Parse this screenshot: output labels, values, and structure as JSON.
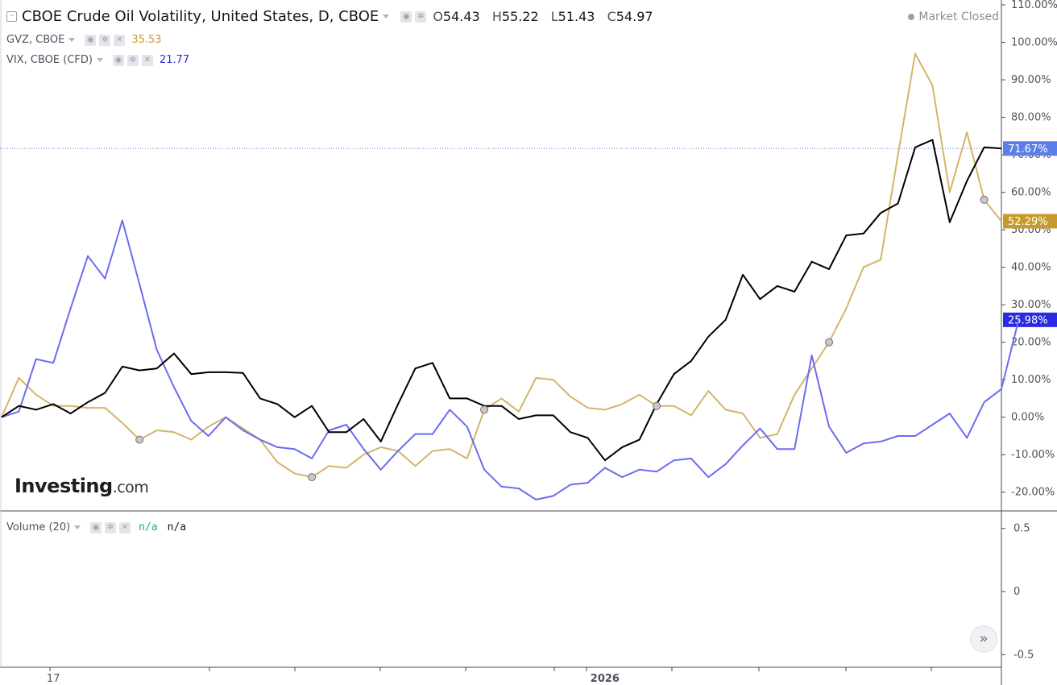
{
  "header": {
    "title": "CBOE Crude Oil Volatility, United States, D, CBOE",
    "open_label": "O",
    "open": "54.43",
    "high_label": "H",
    "high": "55.22",
    "low_label": "L",
    "low": "51.43",
    "close_label": "C",
    "close": "54.97",
    "market_status": "Market Closed"
  },
  "legend": {
    "gvz_name": "GVZ, CBOE",
    "gvz_value": "35.53",
    "vix_name": "VIX, CBOE (CFD)",
    "vix_value": "21.77",
    "volume_name": "Volume (20)",
    "volume_value_1": "n/a",
    "volume_value_2": "n/a"
  },
  "branding": {
    "logo_main": "Investing",
    "logo_suffix": ".com"
  },
  "scroll_button_glyph": "»",
  "colors": {
    "ovx": "#000000",
    "gvz": "#d4b46a",
    "vix": "#6b6cf2",
    "gvz_label": "#c79a2c",
    "vix_label": "#2a2ae0",
    "ovx_label": "#5b7fe6",
    "volume_value": "#26a69a"
  },
  "chart_data": [
    {
      "type": "line",
      "title": "CBOE Crude Oil Volatility, United States, D, CBOE",
      "y_unit": "%",
      "ylim": [
        -25,
        110
      ],
      "yticks": [
        "110.00%",
        "100.00%",
        "90.00%",
        "80.00%",
        "70.00%",
        "60.00%",
        "50.00%",
        "40.00%",
        "30.00%",
        "20.00%",
        "10.00%",
        "0.00%",
        "-10.00%",
        "-20.00%"
      ],
      "x_tick_labels": [
        "17",
        "2026"
      ],
      "x_tick_label_index": [
        3,
        35
      ],
      "grid": false,
      "series": [
        {
          "name": "CBOE Crude Oil Volatility",
          "color": "#000000",
          "last_value_label": "71.67%",
          "values": [
            0.0,
            3.0,
            2.0,
            3.5,
            1.0,
            4.0,
            6.5,
            13.5,
            12.5,
            13.0,
            17.0,
            11.5,
            12.0,
            12.0,
            11.8,
            5.0,
            3.5,
            0.0,
            3.0,
            -4.0,
            -4.0,
            -0.5,
            -6.5,
            3.5,
            13.0,
            14.5,
            5.0,
            5.0,
            3.0,
            3.0,
            -0.5,
            0.5,
            0.5,
            -4.0,
            -5.5,
            -11.5,
            -8.0,
            -6.0,
            3.5,
            11.5,
            15.0,
            21.5,
            26.0,
            38.0,
            31.5,
            35.0,
            33.5,
            41.5,
            39.5,
            48.5,
            49.0,
            54.5,
            57.0,
            72.0,
            74.0,
            52.0,
            63.0,
            72.0,
            71.67
          ]
        },
        {
          "name": "GVZ, CBOE",
          "color": "#d4b46a",
          "last_value_label": "52.29%",
          "values": [
            0.0,
            10.5,
            6.0,
            3.0,
            3.0,
            2.5,
            2.5,
            -1.5,
            -6.0,
            -3.5,
            -4.0,
            -6.0,
            -2.5,
            0.0,
            -3.0,
            -6.0,
            -12.0,
            -15.0,
            -16.0,
            -13.0,
            -13.5,
            -10.0,
            -8.0,
            -9.0,
            -13.0,
            -9.0,
            -8.5,
            -11.0,
            2.0,
            5.0,
            1.5,
            10.5,
            10.0,
            5.5,
            2.5,
            2.0,
            3.5,
            6.0,
            3.0,
            3.0,
            0.5,
            7.0,
            2.0,
            1.0,
            -5.5,
            -4.5,
            6.0,
            13.0,
            20.0,
            29.0,
            40.0,
            42.0,
            70.0,
            97.0,
            88.5,
            60.0,
            76.0,
            58.0,
            52.29
          ]
        },
        {
          "name": "VIX, CBOE (CFD)",
          "color": "#6b6cf2",
          "last_value_label": "25.98%",
          "values": [
            0.0,
            1.5,
            15.5,
            14.5,
            29.0,
            43.0,
            37.0,
            52.5,
            35.5,
            18.0,
            8.0,
            -1.0,
            -5.0,
            0.0,
            -3.5,
            -6.0,
            -8.0,
            -8.5,
            -11.0,
            -3.5,
            -2.0,
            -8.5,
            -14.0,
            -9.0,
            -4.5,
            -4.5,
            2.0,
            -2.5,
            -14.0,
            -18.5,
            -19.0,
            -22.0,
            -21.0,
            -18.0,
            -17.5,
            -13.5,
            -16.0,
            -14.0,
            -14.5,
            -11.5,
            -11.0,
            -16.0,
            -12.5,
            -7.5,
            -3.0,
            -8.5,
            -8.5,
            16.5,
            -2.5,
            -9.5,
            -7.0,
            -6.5,
            -5.0,
            -5.0,
            -2.0,
            1.0,
            -5.5,
            4.0,
            7.5,
            25.98
          ]
        }
      ],
      "markers": [
        {
          "series_index": 1,
          "point_index": 8
        },
        {
          "series_index": 1,
          "point_index": 18
        },
        {
          "series_index": 1,
          "point_index": 28
        },
        {
          "series_index": 1,
          "point_index": 38
        },
        {
          "series_index": 1,
          "point_index": 48
        },
        {
          "series_index": 1,
          "point_index": 57
        }
      ]
    },
    {
      "type": "bar",
      "title": "Volume (20)",
      "ylim": [
        -0.6,
        0.6
      ],
      "yticks": [
        "0.5",
        "0",
        "-0.5"
      ],
      "values": []
    }
  ]
}
